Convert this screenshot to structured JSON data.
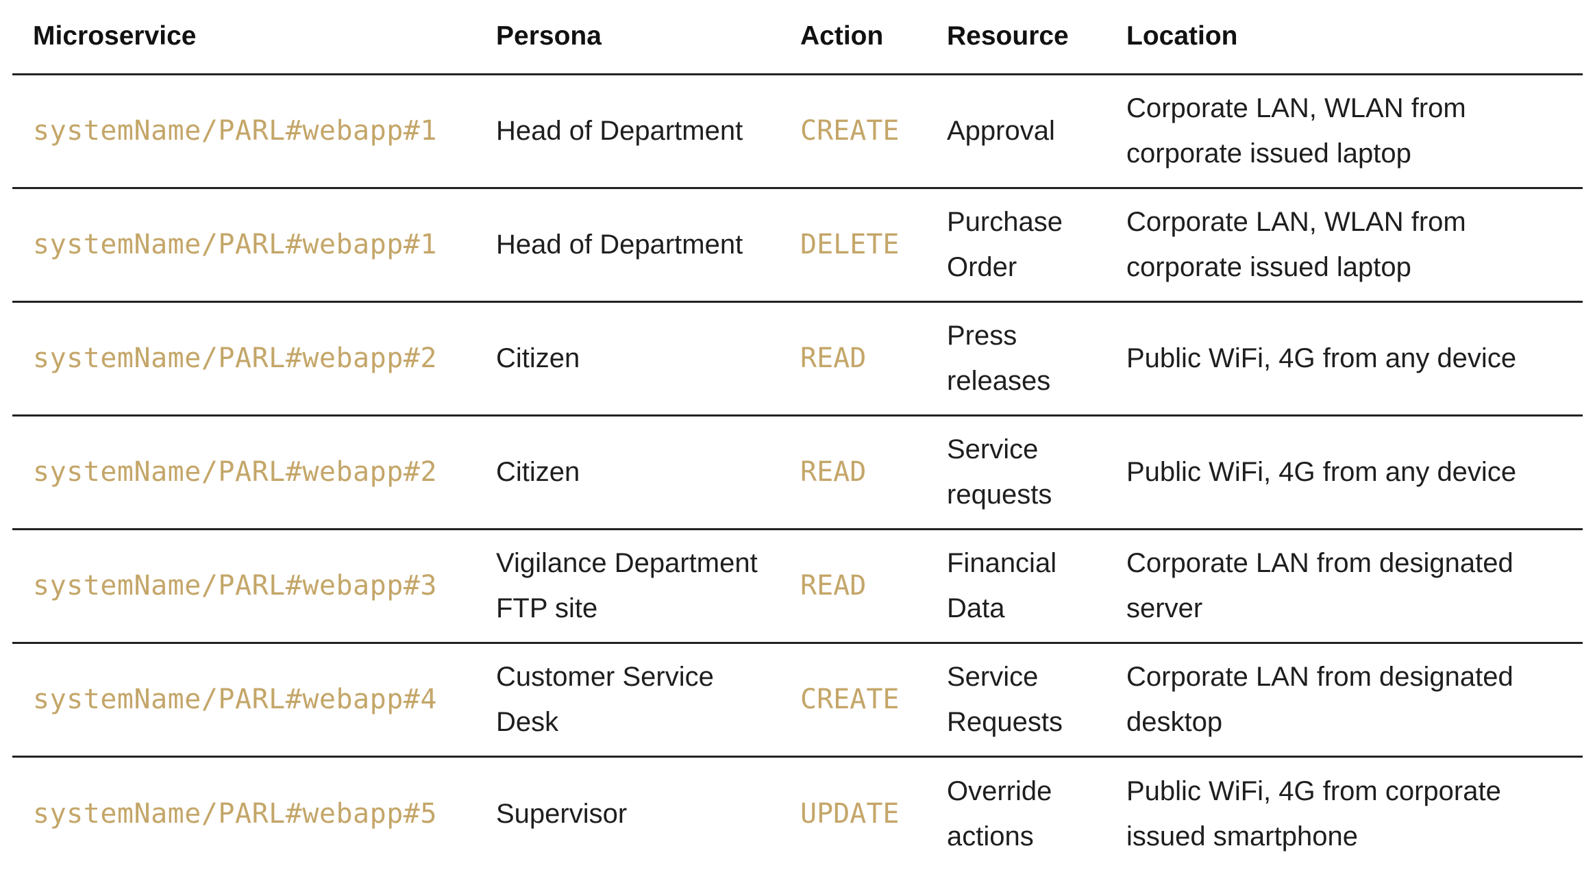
{
  "table": {
    "headers": {
      "microservice": "Microservice",
      "persona": "Persona",
      "action": "Action",
      "resource": "Resource",
      "location": "Location"
    },
    "rows": [
      {
        "microservice": "systemName/PARL#webapp#1",
        "persona": "Head of Department",
        "action": "CREATE",
        "resource": "Approval",
        "location": "Corporate LAN, WLAN from corporate issued laptop"
      },
      {
        "microservice": "systemName/PARL#webapp#1",
        "persona": "Head of Department",
        "action": "DELETE",
        "resource": "Purchase Order",
        "location": "Corporate LAN, WLAN from corporate issued laptop"
      },
      {
        "microservice": "systemName/PARL#webapp#2",
        "persona": "Citizen",
        "action": "READ",
        "resource": "Press releases",
        "location": "Public WiFi, 4G from any device"
      },
      {
        "microservice": "systemName/PARL#webapp#2",
        "persona": "Citizen",
        "action": "READ",
        "resource": "Service requests",
        "location": "Public WiFi, 4G from any device"
      },
      {
        "microservice": "systemName/PARL#webapp#3",
        "persona": "Vigilance Department FTP site",
        "action": "READ",
        "resource": "Financial Data",
        "location": "Corporate LAN from designated server"
      },
      {
        "microservice": "systemName/PARL#webapp#4",
        "persona": "Customer Service Desk",
        "action": "CREATE",
        "resource": "Service Requests",
        "location": "Corporate LAN from designated desktop"
      },
      {
        "microservice": "systemName/PARL#webapp#5",
        "persona": "Supervisor",
        "action": "UPDATE",
        "resource": "Override actions",
        "location": "Public WiFi, 4G from corporate issued smartphone"
      }
    ]
  }
}
